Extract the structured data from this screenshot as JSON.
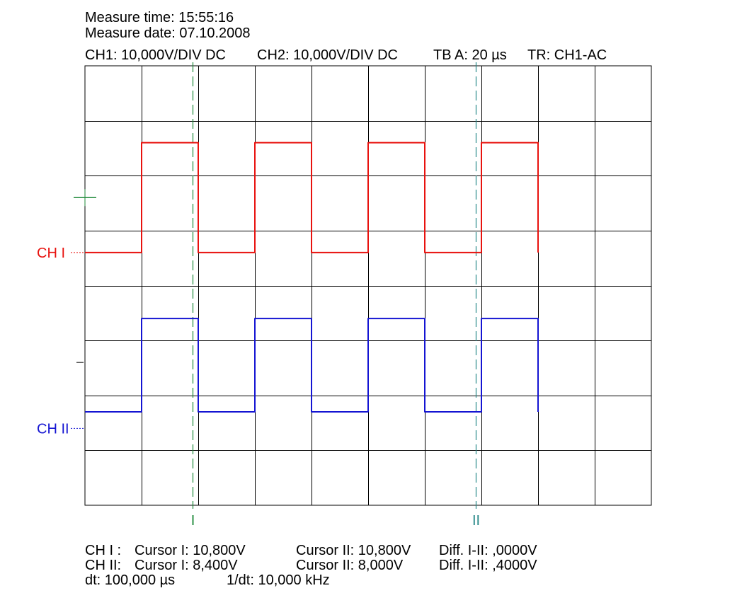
{
  "header": {
    "measure_time": "Measure time: 15:55:16",
    "measure_date": "Measure date: 07.10.2008",
    "settings": {
      "ch1": "CH1: 10,000V/DIV DC",
      "ch2": "CH2: 10,000V/DIV DC",
      "timebase": "TB A: 20 µs",
      "trigger": "TR: CH1-AC"
    }
  },
  "colors": {
    "ch1": "#e8120e",
    "ch2": "#1414d2",
    "cursor1": "#1f8a3a",
    "cursor2": "#2a8a8a",
    "trigger_marker": "#1f8a3a",
    "grid": "#000000"
  },
  "chart_data": {
    "type": "line",
    "grid": true,
    "x_divisions": 10,
    "y_divisions": 8,
    "x_range_us": [
      0,
      200
    ],
    "y_range_div": [
      -4,
      4
    ],
    "series": [
      {
        "name": "CH I",
        "color": "#e8120e",
        "ground_div": 0.6,
        "low_div": 0.6,
        "high_div": 2.6,
        "rise_times_us": [
          20,
          60,
          100,
          140
        ],
        "fall_times_us": [
          40,
          80,
          120,
          160
        ],
        "end_us": 160,
        "waveform": "square"
      },
      {
        "name": "CH II",
        "color": "#1414d2",
        "ground_div": -2.6,
        "low_div": -2.3,
        "high_div": -0.6,
        "rise_times_us": [
          20,
          60,
          100,
          140
        ],
        "fall_times_us": [
          40,
          80,
          120,
          160
        ],
        "end_us": 160,
        "waveform": "square"
      }
    ],
    "cursors": [
      {
        "label": "I",
        "t_us": 38,
        "color": "#1f8a3a"
      },
      {
        "label": "II",
        "t_us": 138,
        "color": "#2a8a8a"
      }
    ],
    "channel_labels": [
      "CH I",
      "CH II"
    ]
  },
  "footer": {
    "row1": {
      "ch": "CH I :",
      "c1": "Cursor I: 10,800V",
      "c2": "Cursor II: 10,800V",
      "diff": "Diff. I-II: ,0000V"
    },
    "row2": {
      "ch": "CH II:",
      "c1": "Cursor I: 8,400V",
      "c2": "Cursor II: 8,000V",
      "diff": "Diff. I-II: ,4000V"
    },
    "row3": {
      "dt": "dt: 100,000 µs",
      "inv_dt": "1/dt: 10,000 kHz"
    }
  }
}
